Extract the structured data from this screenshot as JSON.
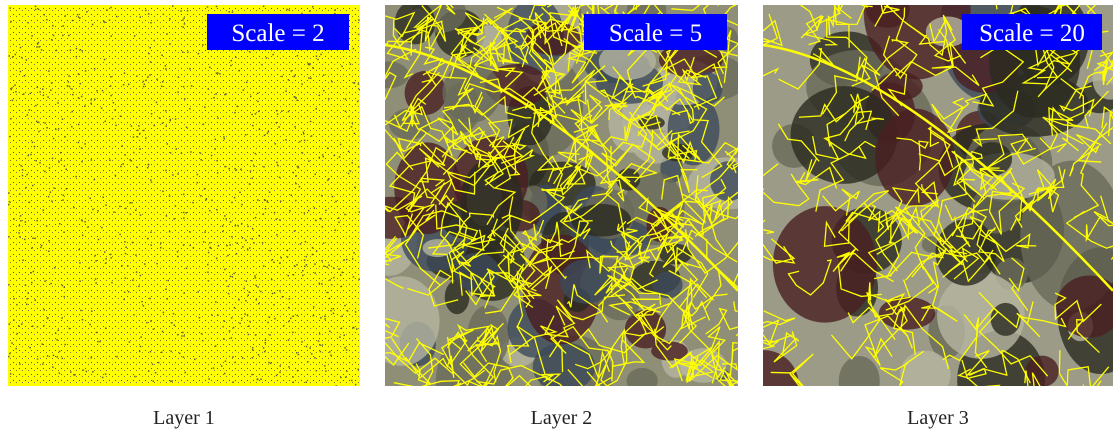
{
  "panels": [
    {
      "scale_label": "Scale = 2",
      "caption": "Layer 1"
    },
    {
      "scale_label": "Scale = 5",
      "caption": "Layer 2"
    },
    {
      "scale_label": "Scale = 20",
      "caption": "Layer 3"
    }
  ]
}
